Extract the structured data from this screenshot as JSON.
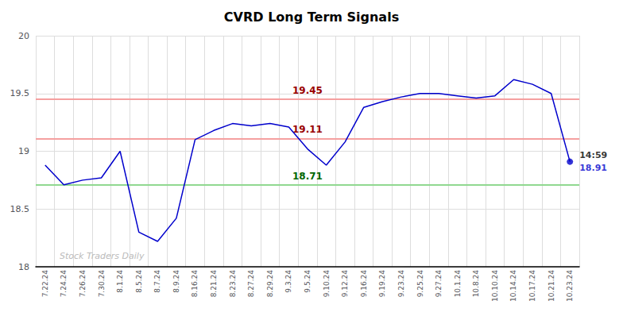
{
  "chart_data": {
    "type": "line",
    "title": "CVRD Long Term Signals",
    "categories": [
      "7.22.24",
      "7.24.24",
      "7.26.24",
      "7.30.24",
      "8.1.24",
      "8.5.24",
      "8.7.24",
      "8.9.24",
      "8.16.24",
      "8.21.24",
      "8.23.24",
      "8.27.24",
      "8.29.24",
      "9.3.24",
      "9.5.24",
      "9.10.24",
      "9.12.24",
      "9.16.24",
      "9.19.24",
      "9.23.24",
      "9.25.24",
      "9.27.24",
      "10.1.24",
      "10.8.24",
      "10.10.24",
      "10.14.24",
      "10.17.24",
      "10.21.24",
      "10.23.24"
    ],
    "values": [
      18.88,
      18.71,
      18.75,
      18.77,
      19.0,
      18.3,
      18.22,
      18.42,
      19.1,
      19.18,
      19.24,
      19.22,
      19.24,
      19.21,
      19.02,
      18.88,
      19.08,
      19.38,
      19.43,
      19.47,
      19.5,
      19.5,
      19.48,
      19.46,
      19.48,
      19.62,
      19.58,
      19.5,
      18.91
    ],
    "color": "#0000cc",
    "ylim": [
      18,
      20
    ],
    "yticks": [
      18,
      18.5,
      19,
      19.5,
      20
    ],
    "grid": true,
    "hlines": [
      {
        "value": 19.45,
        "label": "19.45",
        "color": "#f5a0a0",
        "label_color": "#990000"
      },
      {
        "value": 19.11,
        "label": "19.11",
        "color": "#f5a0a0",
        "label_color": "#990000"
      },
      {
        "value": 18.71,
        "label": "18.71",
        "color": "#90d890",
        "label_color": "#006600"
      }
    ],
    "last_point": {
      "value": 18.91,
      "time_label": "14:59",
      "value_label": "18.91",
      "color": "#0000cc"
    },
    "annotations": [
      {
        "text": "Stock Traders Daily",
        "color": "#bbbbbb"
      }
    ]
  }
}
